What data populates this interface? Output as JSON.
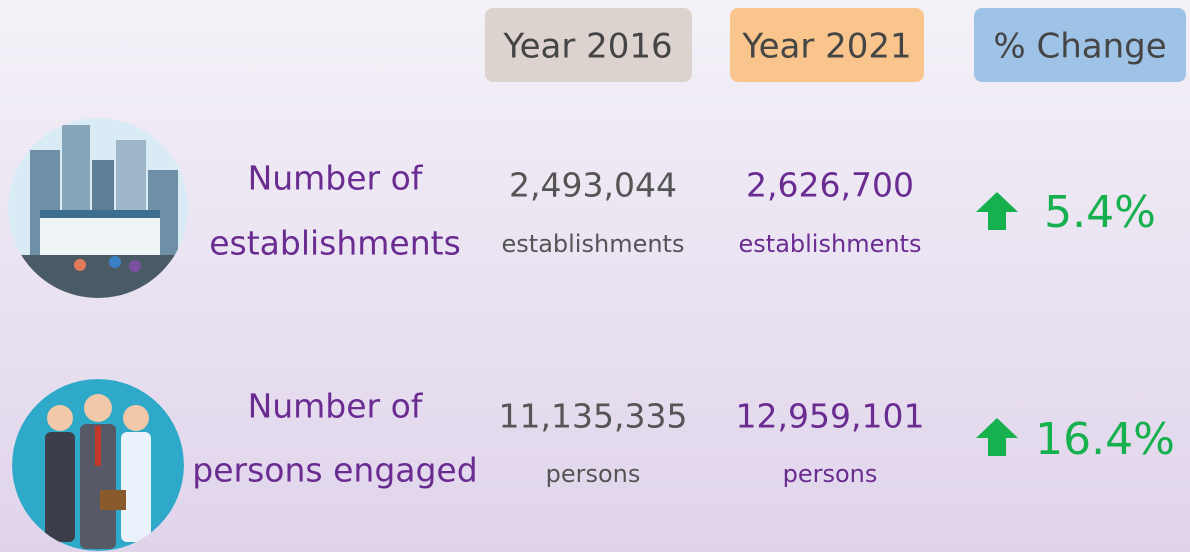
{
  "headers": [
    "Year 2016",
    "Year 2021",
    "% Change"
  ],
  "rows": [
    {
      "label": [
        "Number of",
        "establishments"
      ],
      "year_2016": {
        "value": "2,493,044",
        "unit": "establishments"
      },
      "year_2021": {
        "value": "2,626,700",
        "unit": "establishments"
      },
      "change": "5.4%"
    },
    {
      "label": [
        "Number of",
        "persons engaged"
      ],
      "year_2016": {
        "value": "11,135,335",
        "unit": "persons"
      },
      "year_2021": {
        "value": "12,959,101",
        "unit": "persons"
      },
      "change": "16.4%"
    }
  ]
}
